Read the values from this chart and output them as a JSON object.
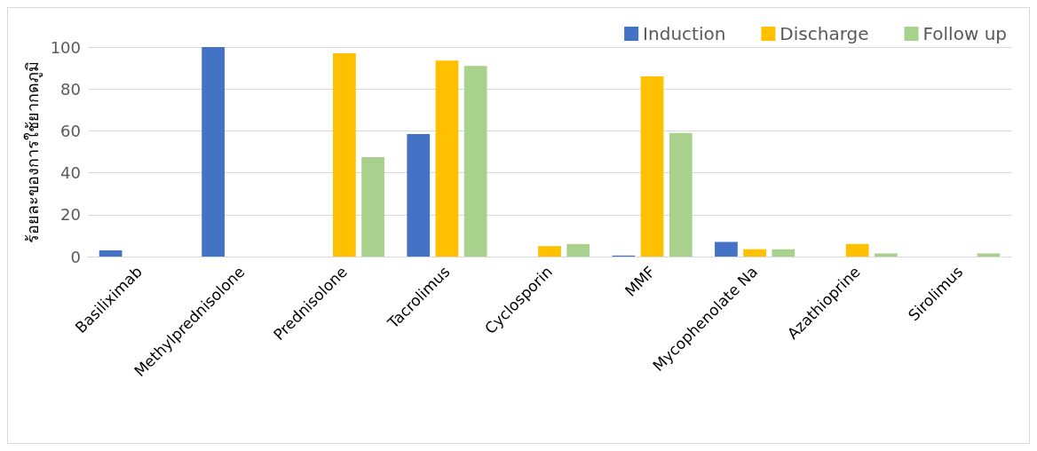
{
  "chart_data": {
    "type": "bar",
    "ylabel": "ร้อยละของการใช้ยากดภูมิ",
    "categories": [
      "Basiliximab",
      "Methylprednisolone",
      "Prednisolone",
      "Tacrolimus",
      "Cyclosporin",
      "MMF",
      "Mycophenolate Na",
      "Azathioprine",
      "Sirolimus"
    ],
    "series": [
      {
        "name": "Induction",
        "color": "#4472c4",
        "values": [
          3,
          100,
          0,
          58.5,
          0,
          0.5,
          7,
          0,
          0
        ]
      },
      {
        "name": "Discharge",
        "color": "#ffc000",
        "values": [
          0,
          0,
          97,
          93.5,
          5,
          86,
          3.5,
          6,
          0
        ]
      },
      {
        "name": "Follow up",
        "color": "#a9d18e",
        "values": [
          0,
          0,
          47.5,
          91,
          6,
          59,
          3.5,
          1.5,
          1.5
        ]
      }
    ],
    "ylim": [
      0,
      100
    ],
    "yticks": [
      0,
      20,
      40,
      60,
      80,
      100
    ],
    "grid": "y",
    "legend": "top right"
  }
}
